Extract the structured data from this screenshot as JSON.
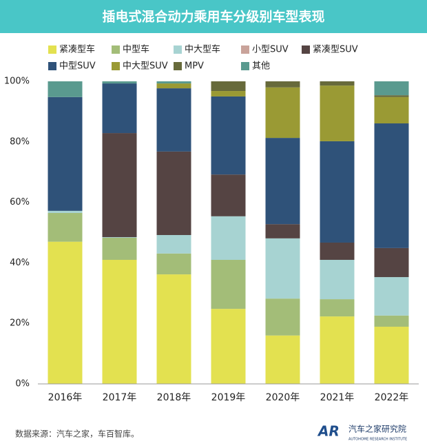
{
  "chart_data": {
    "type": "stacked_bar",
    "title": "插电式混合动力乘用车分级别车型表现",
    "categories": [
      "2016年",
      "2017年",
      "2018年",
      "2019年",
      "2020年",
      "2021年",
      "2022年"
    ],
    "series": [
      {
        "name": "紧凑型车",
        "color": "#e3e150",
        "values": [
          47,
          41,
          36.2,
          24.8,
          16,
          22.3,
          18.9
        ]
      },
      {
        "name": "中型车",
        "color": "#a3bd78",
        "values": [
          9.5,
          7.3,
          6.9,
          16.2,
          12.2,
          5.7,
          3.7
        ]
      },
      {
        "name": "中大型车",
        "color": "#a7d3d2",
        "values": [
          0.7,
          0.2,
          6.1,
          14.4,
          19.9,
          13,
          12.7
        ]
      },
      {
        "name": "小型SUV",
        "color": "#c9a39a",
        "values": [
          0,
          0,
          0,
          0,
          0,
          0,
          0
        ]
      },
      {
        "name": "紧凑型SUV",
        "color": "#554443",
        "values": [
          0,
          34.4,
          27.6,
          13.8,
          4.7,
          5.7,
          9.6
        ]
      },
      {
        "name": "中型SUV",
        "color": "#2f5279",
        "values": [
          37.6,
          16.4,
          20.9,
          25.8,
          28.5,
          33.5,
          41.2
        ]
      },
      {
        "name": "中大型SUV",
        "color": "#9a9a34",
        "values": [
          0,
          0,
          1.6,
          1.8,
          16.7,
          18.4,
          8.7
        ]
      },
      {
        "name": "MPV",
        "color": "#676a3b",
        "values": [
          0,
          0,
          0,
          3.2,
          2,
          1.4,
          0.6
        ]
      },
      {
        "name": "其他",
        "color": "#5a9a8f",
        "values": [
          5.2,
          0.7,
          0.7,
          0,
          0,
          0,
          4.6
        ]
      }
    ],
    "ylim": [
      0,
      100
    ],
    "yticks": [
      {
        "value": 0,
        "label": "0%"
      },
      {
        "value": 20,
        "label": "20%"
      },
      {
        "value": 40,
        "label": "40%"
      },
      {
        "value": 60,
        "label": "60%"
      },
      {
        "value": 80,
        "label": "80%"
      },
      {
        "value": 100,
        "label": "100%"
      }
    ],
    "grid": false,
    "source": "数据来源：汽车之家，车百智库。",
    "logo": {
      "mark": "AR",
      "name": "汽车之家研究院",
      "subtitle": "AUTOHOME RESEARCH INSTITUTE"
    }
  }
}
